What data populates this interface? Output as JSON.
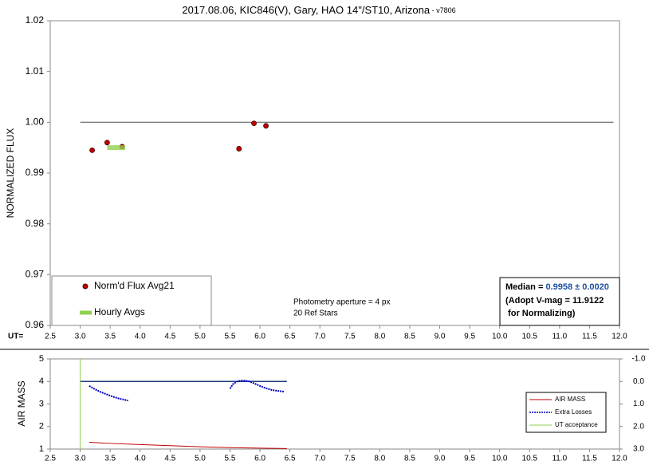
{
  "chart_data": [
    {
      "type": "scatter",
      "title": "2017.08.06, KIC846(V), Gary, HAO 14\"/ST10, Arizona",
      "title_suffix": " - v7806",
      "ylabel": "NORMALIZED FLUX",
      "xlabel": "UT=",
      "xlim": [
        2.5,
        12.0
      ],
      "xticks": [
        2.5,
        {
          "value": 3,
          "label": "3.0"
        },
        3.5,
        {
          "value": 4,
          "label": "4.0"
        },
        4.5,
        {
          "value": 5,
          "label": "5.0"
        },
        5.5,
        {
          "value": 6,
          "label": "6.0"
        },
        6.5,
        {
          "value": 7,
          "label": "7.0"
        },
        7.5,
        {
          "value": 8,
          "label": "8.0"
        },
        8.5,
        {
          "value": 9,
          "label": "9.0"
        },
        9.5,
        {
          "value": 10,
          "label": "10.0"
        },
        10.5,
        {
          "value": 11,
          "label": "11.0"
        },
        11.5,
        {
          "value": 12,
          "label": "12.0"
        }
      ],
      "ylim": [
        0.96,
        1.02
      ],
      "yticks": [
        0.96,
        0.97,
        0.98,
        0.99,
        {
          "value": 1,
          "label": "1.00"
        },
        1.01,
        1.02
      ],
      "series": [
        {
          "name": "Norm'd Flux Avg21",
          "color": "#c00000",
          "style": "dot",
          "x": [
            3.2,
            3.45,
            3.7,
            5.65,
            5.9,
            6.1
          ],
          "values": [
            0.9945,
            0.996,
            0.9952,
            0.9948,
            0.9998,
            0.9993
          ]
        },
        {
          "name": "Hourly Avgs",
          "color": "#92d050",
          "style": "thick",
          "x": [
            3.45,
            3.75
          ],
          "values": [
            0.995,
            0.995
          ]
        }
      ],
      "reference_line": {
        "y": 1,
        "x": [
          3,
          11.9
        ],
        "color": "#808080"
      },
      "annotations": [
        "Photometry aperture = 4 px",
        "20 Ref Stars"
      ],
      "median_box": {
        "label": "Median = ",
        "value": "0.9958 ± 0.0020",
        "lines": [
          "(Adopt V-mag = 11.9122",
          " for Normalizing)"
        ]
      }
    },
    {
      "type": "line",
      "ylabel": "AIR MASS",
      "xlim": [
        2.5,
        12.0
      ],
      "xticks": [
        2.5,
        {
          "value": 3,
          "label": "3.0"
        },
        3.5,
        {
          "value": 4,
          "label": "4.0"
        },
        4.5,
        {
          "value": 5,
          "label": "5.0"
        },
        5.5,
        {
          "value": 6,
          "label": "6.0"
        },
        6.5,
        {
          "value": 7,
          "label": "7.0"
        },
        7.5,
        {
          "value": 8,
          "label": "8.0"
        },
        8.5,
        {
          "value": 9,
          "label": "9.0"
        },
        9.5,
        {
          "value": 10,
          "label": "10.0"
        },
        10.5,
        {
          "value": 11,
          "label": "11.0"
        },
        11.5,
        {
          "value": 12,
          "label": "12.0"
        }
      ],
      "ylim": [
        1,
        5
      ],
      "yticks": [
        1,
        2,
        3,
        4,
        5
      ],
      "y2lim": [
        3,
        -1
      ],
      "y2ticks": [
        {
          "value": 3,
          "label": "3.0"
        },
        {
          "value": 2,
          "label": "2.0"
        },
        {
          "value": 1,
          "label": "1.0"
        },
        {
          "value": 0,
          "label": "0.0"
        },
        {
          "value": -1,
          "label": "-1.0"
        }
      ],
      "series": [
        {
          "name": "AIR MASS",
          "color": "#c00000",
          "style": "solid",
          "x": [
            3.15,
            3.5,
            4.0,
            4.5,
            5.0,
            5.5,
            6.0,
            6.45
          ],
          "values": [
            1.3,
            1.25,
            1.2,
            1.15,
            1.1,
            1.06,
            1.04,
            1.02
          ]
        },
        {
          "name": "Extra Losses",
          "color": "#0000c0",
          "style": "dashed",
          "axis": "y2",
          "x": [
            3.15,
            3.25,
            3.35,
            3.45,
            3.55,
            3.65,
            3.8,
            null,
            5.5,
            5.55,
            5.62,
            5.7,
            5.8,
            5.9,
            6.0,
            6.1,
            6.2,
            6.3,
            6.4
          ],
          "values": [
            0.2,
            0.35,
            0.48,
            0.58,
            0.68,
            0.76,
            0.85,
            null,
            0.32,
            0.12,
            0.0,
            -0.04,
            -0.02,
            0.08,
            0.2,
            0.3,
            0.38,
            0.42,
            0.45
          ]
        },
        {
          "name": "UT acceptance",
          "color": "#92d050",
          "style": "solid",
          "x": [
            3,
            3
          ],
          "values": [
            1,
            5
          ]
        }
      ],
      "reference_line": {
        "y": 4,
        "x": [
          3,
          6.45
        ],
        "color": "#1f3f7f"
      }
    }
  ]
}
